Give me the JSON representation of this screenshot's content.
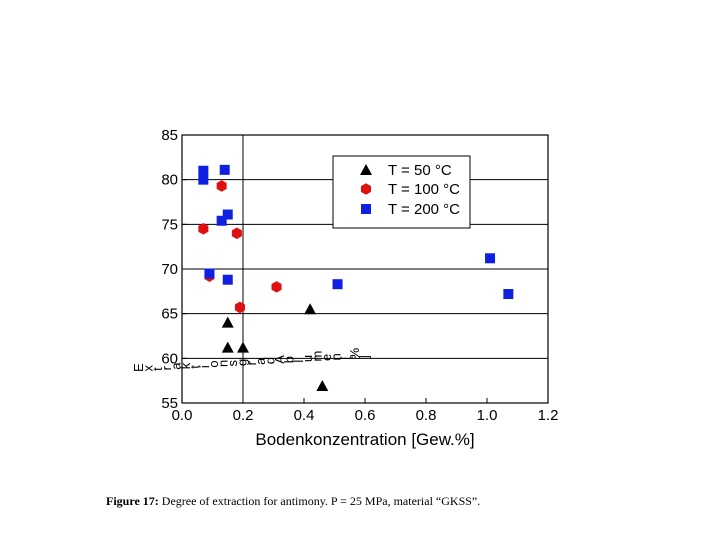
{
  "caption": {
    "label": "Figure 17:",
    "text": "Degree of extraction for antimony. P = 25 MPa, material “GKSS”."
  },
  "colors": {
    "triangle": "#000000",
    "hexagon": "#e01010",
    "square": "#1020e0"
  },
  "chart_data": {
    "type": "scatter",
    "xlabel": "Bodenkonzentration [Gew.%]",
    "ylabel": "Extraktionsgrad Ablumen [%]",
    "xlim": [
      0.0,
      1.2
    ],
    "ylim": [
      55,
      85
    ],
    "xticks": [
      "0.0",
      "0.2",
      "0.4",
      "0.6",
      "0.8",
      "1.0",
      "1.2"
    ],
    "yticks": [
      "55",
      "60",
      "65",
      "70",
      "75",
      "80",
      "85"
    ],
    "reference_line_x": 0.2,
    "legend_position": "top-right",
    "series": [
      {
        "name": "T =  50 °C",
        "marker": "triangle",
        "points": [
          [
            0.15,
            64.0
          ],
          [
            0.15,
            61.2
          ],
          [
            0.2,
            61.2
          ],
          [
            0.42,
            65.5
          ],
          [
            0.46,
            56.9
          ]
        ]
      },
      {
        "name": "T = 100 °C",
        "marker": "hexagon",
        "points": [
          [
            0.13,
            79.3
          ],
          [
            0.07,
            74.5
          ],
          [
            0.18,
            74.0
          ],
          [
            0.09,
            69.2
          ],
          [
            0.19,
            65.7
          ],
          [
            0.31,
            68.0
          ]
        ]
      },
      {
        "name": "T = 200 °C",
        "marker": "square",
        "points": [
          [
            0.07,
            81.0
          ],
          [
            0.07,
            80.0
          ],
          [
            0.14,
            81.1
          ],
          [
            0.15,
            76.1
          ],
          [
            0.13,
            75.4
          ],
          [
            0.09,
            69.5
          ],
          [
            0.15,
            68.8
          ],
          [
            0.51,
            68.3
          ],
          [
            1.01,
            71.2
          ],
          [
            1.07,
            67.2
          ]
        ]
      }
    ]
  }
}
